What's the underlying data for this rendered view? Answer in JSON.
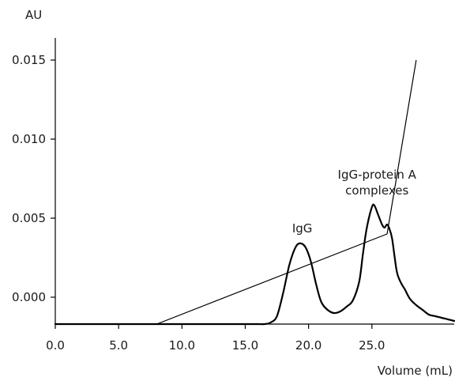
{
  "chart_data": {
    "type": "line",
    "title": "",
    "xlabel": "Volume (mL)",
    "ylabel": "AU",
    "xlim": [
      0,
      31.5
    ],
    "ylim": [
      -0.0017,
      0.0162
    ],
    "x_ticks": [
      0,
      5,
      10,
      15,
      20,
      25
    ],
    "x_tick_labels": [
      "0.0",
      "5.0",
      "10.0",
      "15.0",
      "20.0",
      "25.0"
    ],
    "y_ticks": [
      0,
      0.005,
      0.01,
      0.015
    ],
    "y_tick_labels": [
      "0.000",
      "0.005",
      "0.010",
      "0.015"
    ],
    "grid": false,
    "legend": "none",
    "annotations": [
      {
        "text": "IgG",
        "x": 19.5,
        "y": 0.0041
      },
      {
        "text": "IgG-protein A",
        "x": 25.4,
        "y": 0.0075
      },
      {
        "text": "complexes",
        "x": 25.4,
        "y": 0.0065
      }
    ],
    "series": [
      {
        "role": "absorbance",
        "x": [
          0,
          5,
          10,
          15,
          16,
          16.5,
          17,
          17.5,
          18,
          18.5,
          19,
          19.4,
          19.8,
          20.2,
          20.6,
          21,
          21.5,
          22,
          22.5,
          23,
          23.5,
          24,
          24.3,
          24.6,
          25,
          25.2,
          25.5,
          25.8,
          26,
          26.2,
          26.4,
          26.6,
          26.8,
          27,
          27.3,
          27.6,
          28,
          28.5,
          29,
          29.5,
          30,
          30.5,
          31,
          31.5
        ],
        "y": [
          -0.0017,
          -0.0017,
          -0.0017,
          -0.0017,
          -0.0017,
          -0.0017,
          -0.0016,
          -0.0012,
          0.0003,
          0.0021,
          0.0032,
          0.0034,
          0.0031,
          0.0022,
          0.0008,
          -0.0003,
          -0.0008,
          -0.001,
          -0.0009,
          -0.0006,
          -0.0002,
          0.001,
          0.0028,
          0.0044,
          0.0057,
          0.0058,
          0.0052,
          0.0046,
          0.0044,
          0.0046,
          0.0043,
          0.0037,
          0.0025,
          0.0015,
          0.0009,
          0.0005,
          -0.0001,
          -0.0005,
          -0.0008,
          -0.0011,
          -0.0012,
          -0.0013,
          -0.0014,
          -0.0015
        ]
      },
      {
        "role": "gradient",
        "x": [
          0,
          8,
          26.2,
          28.5
        ],
        "y": [
          -0.0017,
          -0.0017,
          0.004,
          0.015
        ]
      }
    ]
  }
}
